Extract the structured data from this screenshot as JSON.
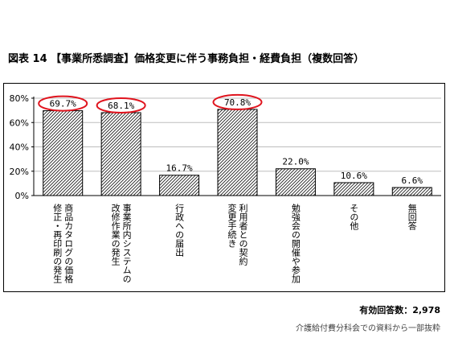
{
  "title": "図表 14 【事業所悉調査】価格変更に伴う事務負担・経費負担（複数回答）",
  "chart_data": {
    "type": "bar",
    "categories": [
      "商品カタログの価格修正・再印刷の発生",
      "事業所内システムの改修作業の発生",
      "行政への届出",
      "利用者との契約変更手続き",
      "勉強会の開催や参加",
      "その他",
      "無回答"
    ],
    "category_lines": [
      [
        "商品カタログの価格",
        "修正・再印刷の発生"
      ],
      [
        "事業所内システムの",
        "改修作業の発生"
      ],
      [
        "行政への届出"
      ],
      [
        "利用者との契約",
        "変更手続き"
      ],
      [
        "勉強会の開催や参加"
      ],
      [
        "その他"
      ],
      [
        "無回答"
      ]
    ],
    "values": [
      69.7,
      68.1,
      16.7,
      70.8,
      22.0,
      10.6,
      6.6
    ],
    "value_labels": [
      "69.7%",
      "68.1%",
      "16.7%",
      "70.8%",
      "22.0%",
      "10.6%",
      "6.6%"
    ],
    "highlighted": [
      true,
      true,
      false,
      true,
      false,
      false,
      false
    ],
    "highlight_color": "#e0141e",
    "bar_fill": "hatched",
    "ylim": [
      0,
      80
    ],
    "y_ticks": [
      "0%",
      "20%",
      "40%",
      "60%",
      "80%"
    ],
    "y_tick_values": [
      0,
      20,
      40,
      60,
      80
    ],
    "grid": true,
    "xlabel": "",
    "ylabel": ""
  },
  "notes": {
    "respondents": "有効回答数：2,978",
    "source": "介護給付費分科会での資料から一部抜粋"
  }
}
